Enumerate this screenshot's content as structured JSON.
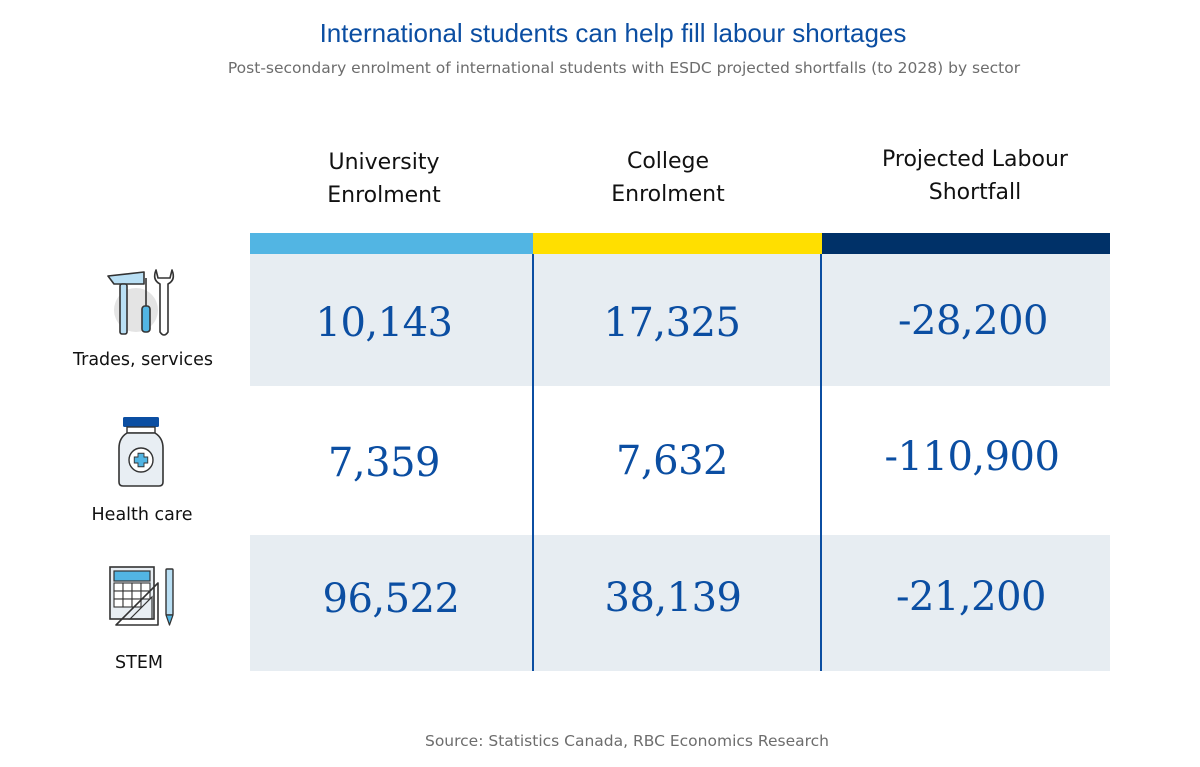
{
  "chart_data": {
    "type": "table",
    "title": "International students can help fill labour shortages",
    "subtitle": "Post-secondary enrolment of international students with ESDC projected shortfalls (to 2028) by sector",
    "columns": [
      {
        "label_lines": [
          "University",
          "Enrolment"
        ],
        "color": "#52b5e3"
      },
      {
        "label_lines": [
          "College",
          "Enrolment"
        ],
        "color": "#ffdf00"
      },
      {
        "label_lines": [
          "Projected Labour",
          "Shortfall"
        ],
        "color": "#003168"
      }
    ],
    "rows": [
      {
        "label": "Trades, services",
        "icon": "tools-icon",
        "values": [
          "10,143",
          "17,325",
          "-28,200"
        ]
      },
      {
        "label": "Health care",
        "icon": "medicine-bottle-icon",
        "values": [
          "7,359",
          "7,632",
          "-110,900"
        ]
      },
      {
        "label": "STEM",
        "icon": "drafting-tools-icon",
        "values": [
          "96,522",
          "38,139",
          "-21,200"
        ]
      }
    ],
    "source": "Source: Statistics Canada, RBC Economics Research"
  }
}
